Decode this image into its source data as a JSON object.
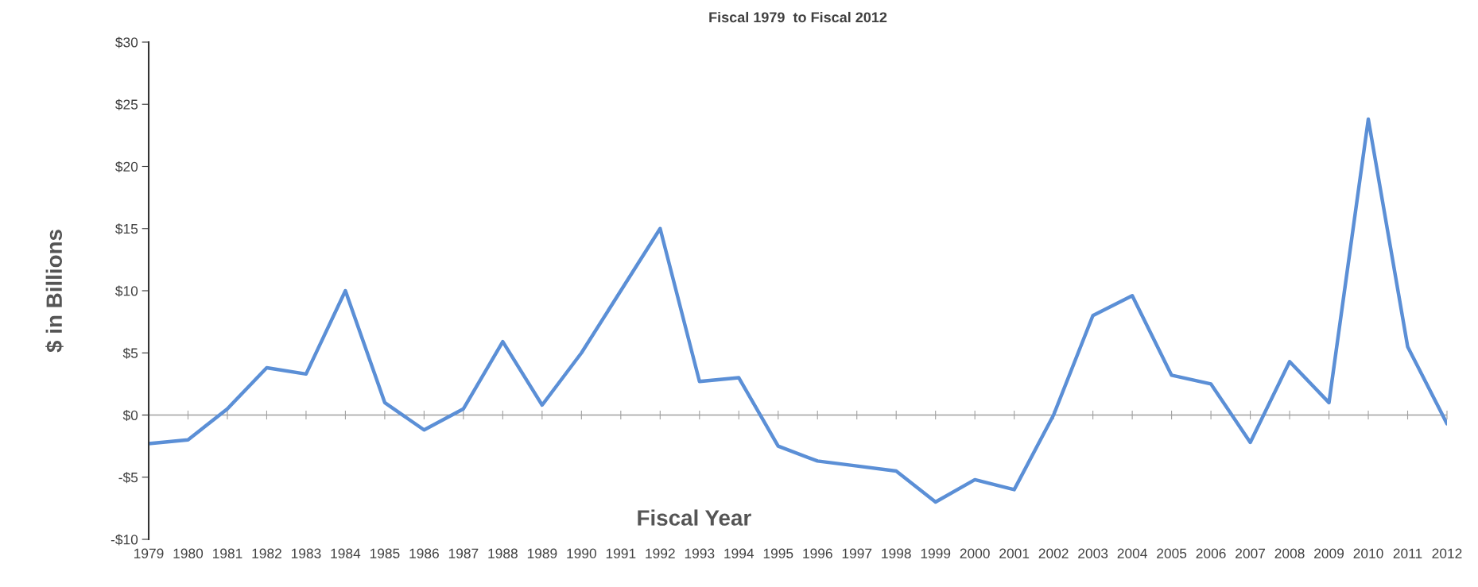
{
  "chart_data": {
    "type": "line",
    "title": "Fiscal 1979  to Fiscal 2012",
    "xlabel": "Fiscal Year",
    "ylabel": "$ in Billions",
    "categories": [
      "1979",
      "1980",
      "1981",
      "1982",
      "1983",
      "1984",
      "1985",
      "1986",
      "1987",
      "1988",
      "1989",
      "1990",
      "1991",
      "1992",
      "1993",
      "1994",
      "1995",
      "1996",
      "1997",
      "1998",
      "1999",
      "2000",
      "2001",
      "2002",
      "2003",
      "2004",
      "2005",
      "2006",
      "2007",
      "2008",
      "2009",
      "2010",
      "2011",
      "2012"
    ],
    "series": [
      {
        "color": "#5b8fd6",
        "values": [
          -2.3,
          -2.0,
          0.5,
          3.8,
          3.3,
          10,
          1,
          -1.2,
          0.5,
          5.9,
          0.8,
          5,
          10,
          15,
          2.7,
          3,
          -2.5,
          -3.7,
          -4.1,
          -4.5,
          -7,
          -5.2,
          -6,
          0,
          8,
          9.6,
          3.2,
          2.5,
          -2.2,
          4.3,
          1,
          23.8,
          5.5,
          -0.7
        ]
      }
    ],
    "ylim": [
      -10,
      30
    ],
    "yticks": [
      {
        "value": -10,
        "label": "-$10"
      },
      {
        "value": -5,
        "label": "-$5"
      },
      {
        "value": 0,
        "label": "$0"
      },
      {
        "value": 5,
        "label": "$5"
      },
      {
        "value": 10,
        "label": "$10"
      },
      {
        "value": 15,
        "label": "$15"
      },
      {
        "value": 20,
        "label": "$20"
      },
      {
        "value": 25,
        "label": "$25"
      },
      {
        "value": 30,
        "label": "$30"
      }
    ],
    "ref_lines": [
      {
        "axis": "y",
        "value": 0,
        "color": "#a0a0a0"
      }
    ],
    "grid": false,
    "legend": false,
    "marker": "none",
    "line_style": "solid"
  }
}
